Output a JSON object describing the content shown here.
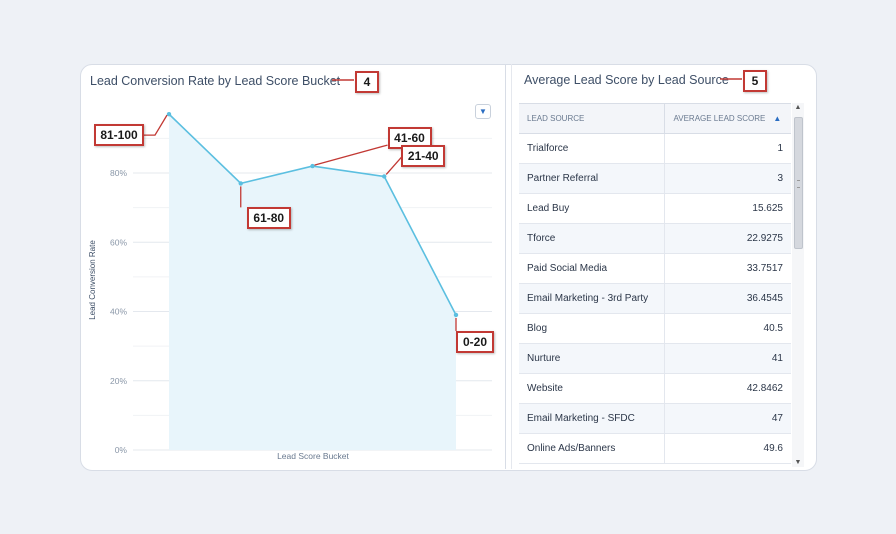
{
  "left_panel": {
    "title": "Lead Conversion Rate by Lead Score Bucket",
    "callout_number": "4"
  },
  "right_panel": {
    "title": "Average Lead Score by Lead Source",
    "callout_number": "5",
    "columns": [
      "LEAD SOURCE",
      "AVERAGE LEAD SCORE"
    ],
    "rows": [
      {
        "source": "Trialforce",
        "score": "1"
      },
      {
        "source": "Partner Referral",
        "score": "3"
      },
      {
        "source": "Lead Buy",
        "score": "15.625"
      },
      {
        "source": "Tforce",
        "score": "22.9275"
      },
      {
        "source": "Paid Social Media",
        "score": "33.7517"
      },
      {
        "source": "Email Marketing - 3rd Party",
        "score": "36.4545"
      },
      {
        "source": "Blog",
        "score": "40.5"
      },
      {
        "source": "Nurture",
        "score": "41"
      },
      {
        "source": "Website",
        "score": "42.8462"
      },
      {
        "source": "Email Marketing - SFDC",
        "score": "47"
      },
      {
        "source": "Online Ads/Banners",
        "score": "49.6"
      }
    ]
  },
  "colors": {
    "line": "#5bbfe0",
    "area": "#e8f5fb",
    "callout_border": "#c23934",
    "grid": "#e4e8ee"
  },
  "chart_data": {
    "type": "area",
    "title": "Lead Conversion Rate by Lead Score Bucket",
    "xlabel": "Lead Score Bucket",
    "ylabel": "Lead Conversion Rate",
    "categories": [
      "81-100",
      "61-80",
      "41-60",
      "21-40",
      "0-20"
    ],
    "values": [
      97,
      77,
      82,
      79,
      39
    ],
    "ylim": [
      0,
      100
    ],
    "yticks": [
      0,
      20,
      40,
      60,
      80
    ],
    "ytick_labels": [
      "0%",
      "20%",
      "40%",
      "60%",
      "80%"
    ],
    "point_labels": [
      "81-100",
      "61-80",
      "41-60",
      "21-40",
      "0-20"
    ]
  }
}
